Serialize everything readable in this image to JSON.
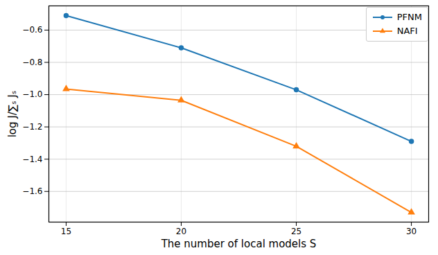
{
  "chart_data": {
    "type": "line",
    "x_label": "The number of local models S",
    "y_label": "log J/∑ₛ Jₛ",
    "x": [
      15,
      20,
      25,
      30
    ],
    "series": [
      {
        "name": "PFNM",
        "color": "#1f77b4",
        "marker": "circle",
        "values": [
          -0.51,
          -0.71,
          -0.97,
          -1.29
        ]
      },
      {
        "name": "NAFI",
        "color": "#ff7f0e",
        "marker": "triangle",
        "values": [
          -0.965,
          -1.035,
          -1.32,
          -1.73
        ]
      }
    ],
    "xlim": [
      14.25,
      30.75
    ],
    "xticks": [
      15,
      20,
      25,
      30
    ],
    "ylim": [
      -1.79,
      -0.45
    ],
    "yticks": [
      {
        "value": -0.6,
        "label": "−0.6"
      },
      {
        "value": -0.8,
        "label": "−0.8"
      },
      {
        "value": -1.0,
        "label": "−1.0"
      },
      {
        "value": -1.2,
        "label": "−1.2"
      },
      {
        "value": -1.4,
        "label": "−1.4"
      },
      {
        "value": -1.6,
        "label": "−1.6"
      }
    ],
    "grid": true,
    "legend": "upper right"
  }
}
